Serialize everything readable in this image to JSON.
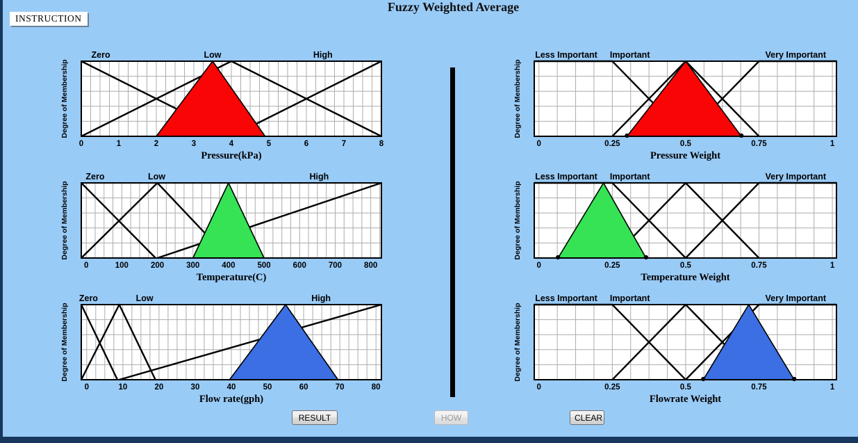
{
  "window": {
    "title": "Fuzzy Weighted Average",
    "instruction_label": "INSTRUCTION"
  },
  "buttons": {
    "result": "RESULT",
    "how": "HOW",
    "clear": "CLEAR"
  },
  "colors": {
    "background": "#99CBF7",
    "frame": "#17375E",
    "grid": "#ACACAC",
    "mf_line": "#000000",
    "red": "#FA0505",
    "green": "#35E354",
    "blue": "#3B6FE3"
  },
  "chart_data": [
    {
      "id": "pressure",
      "type": "line",
      "side": "left",
      "row": 0,
      "xlabel": "Pressure(kPa)",
      "ylabel": "Degree of Membership",
      "xlim": [
        0,
        8
      ],
      "ylim": [
        0,
        1
      ],
      "grid_step_x": 0.25,
      "grid_y": [
        0.2,
        0.4,
        0.6,
        0.8
      ],
      "xticks": {
        "values": [
          0,
          1,
          2,
          3,
          4,
          5,
          6,
          7,
          8
        ],
        "labels": [
          "0",
          "1",
          "2",
          "3",
          "4",
          "5",
          "6",
          "7",
          "8"
        ]
      },
      "mf_labels": [
        {
          "text": "Zero",
          "x": 0.52
        },
        {
          "text": "Low",
          "x": 3.5
        },
        {
          "text": "High",
          "x": 6.44
        }
      ],
      "membership_functions": [
        {
          "name": "Zero",
          "points": [
            [
              0,
              1
            ],
            [
              4,
              0
            ]
          ]
        },
        {
          "name": "Low",
          "points": [
            [
              0,
              0
            ],
            [
              4,
              1
            ],
            [
              8,
              0
            ]
          ]
        },
        {
          "name": "High",
          "points": [
            [
              4,
              0
            ],
            [
              8,
              1
            ]
          ]
        }
      ],
      "fuzzy_number": {
        "name": "pressure input",
        "color_key": "red",
        "points": [
          [
            2,
            0
          ],
          [
            3.5,
            1
          ],
          [
            4.9,
            0
          ]
        ],
        "corner_dots": false
      }
    },
    {
      "id": "temperature",
      "type": "line",
      "side": "left",
      "row": 1,
      "xlabel": "Temperature(C)",
      "ylabel": "Degree of Membership",
      "xlim": [
        -14,
        830
      ],
      "ylim": [
        0,
        1
      ],
      "grid_step_x": 25,
      "grid_y": [
        0.2,
        0.4,
        0.6,
        0.8
      ],
      "xticks": {
        "values": [
          0,
          100,
          200,
          300,
          400,
          500,
          600,
          700,
          800
        ],
        "labels": [
          "0",
          "100",
          "200",
          "300",
          "400",
          "500",
          "600",
          "700",
          "800"
        ]
      },
      "mf_labels": [
        {
          "text": "Zero",
          "x": 25
        },
        {
          "text": "Low",
          "x": 198
        },
        {
          "text": "High",
          "x": 655
        }
      ],
      "membership_functions": [
        {
          "name": "Zero",
          "points": [
            [
              -14,
              1
            ],
            [
              195,
              0
            ]
          ]
        },
        {
          "name": "Low",
          "points": [
            [
              -14,
              0
            ],
            [
              200,
              1
            ],
            [
              400,
              0
            ]
          ]
        },
        {
          "name": "High",
          "points": [
            [
              200,
              0
            ],
            [
              830,
              1
            ]
          ]
        }
      ],
      "fuzzy_number": {
        "name": "temperature input",
        "color_key": "green",
        "points": [
          [
            300,
            0
          ],
          [
            400,
            1
          ],
          [
            500,
            0
          ]
        ],
        "corner_dots": false
      }
    },
    {
      "id": "flowrate",
      "type": "line",
      "side": "left",
      "row": 2,
      "xlabel": "Flow rate(gph)",
      "ylabel": "Degree of Membership",
      "xlim": [
        -1.5,
        81.5
      ],
      "ylim": [
        0,
        1
      ],
      "grid_step_x": 2.5,
      "grid_y": [
        0.2,
        0.4,
        0.6,
        0.8
      ],
      "xticks": {
        "values": [
          0,
          10,
          20,
          30,
          40,
          50,
          60,
          70,
          80
        ],
        "labels": [
          "0",
          "10",
          "20",
          "30",
          "40",
          "50",
          "60",
          "70",
          "80"
        ]
      },
      "mf_labels": [
        {
          "text": "Zero",
          "x": 0.5
        },
        {
          "text": "Low",
          "x": 16
        },
        {
          "text": "High",
          "x": 64.8
        }
      ],
      "membership_functions": [
        {
          "name": "Zero",
          "points": [
            [
              -1.5,
              1
            ],
            [
              8.5,
              0
            ]
          ]
        },
        {
          "name": "Low",
          "points": [
            [
              -1.5,
              0
            ],
            [
              9,
              1
            ],
            [
              19,
              0
            ]
          ]
        },
        {
          "name": "High",
          "points": [
            [
              9,
              0
            ],
            [
              81.5,
              1
            ]
          ]
        }
      ],
      "fuzzy_number": {
        "name": "flow rate input",
        "color_key": "blue",
        "points": [
          [
            39.5,
            0
          ],
          [
            55,
            1
          ],
          [
            69.5,
            0
          ]
        ],
        "corner_dots": false
      }
    },
    {
      "id": "pressure_weight",
      "type": "line",
      "side": "right",
      "row": 0,
      "xlabel": "Pressure Weight",
      "ylabel": "Degree of Membership",
      "xlim": [
        -0.016,
        1.014
      ],
      "ylim": [
        0,
        1
      ],
      "grid_step_x": 0.0625,
      "grid_y": [
        0.2,
        0.4,
        0.6,
        0.8
      ],
      "xticks": {
        "values": [
          0,
          0.25,
          0.5,
          0.75,
          1
        ],
        "labels": [
          "0",
          "0.25",
          "0.5",
          "0.75",
          "1"
        ]
      },
      "mf_labels": [
        {
          "text": "Less Important",
          "x": 0.093
        },
        {
          "text": "Important",
          "x": 0.31
        },
        {
          "text": "Very Important",
          "x": 0.875
        }
      ],
      "membership_functions": [
        {
          "name": "Less Important",
          "points": [
            [
              -0.016,
              1
            ],
            [
              0.25,
              1
            ],
            [
              0.5,
              0
            ]
          ]
        },
        {
          "name": "Important",
          "points": [
            [
              0.25,
              0
            ],
            [
              0.5,
              1
            ],
            [
              0.75,
              0
            ]
          ]
        },
        {
          "name": "Very Important",
          "points": [
            [
              0.5,
              0
            ],
            [
              0.75,
              1
            ],
            [
              1.014,
              1
            ]
          ]
        }
      ],
      "fuzzy_number": {
        "name": "pressure weight",
        "color_key": "red",
        "points": [
          [
            0.3,
            0
          ],
          [
            0.5,
            1
          ],
          [
            0.69,
            0
          ]
        ],
        "corner_dots": true
      }
    },
    {
      "id": "temperature_weight",
      "type": "line",
      "side": "right",
      "row": 1,
      "xlabel": "Temperature Weight",
      "ylabel": "Degree of Membership",
      "xlim": [
        -0.016,
        1.014
      ],
      "ylim": [
        0,
        1
      ],
      "grid_step_x": 0.0625,
      "grid_y": [
        0.2,
        0.4,
        0.6,
        0.8
      ],
      "xticks": {
        "values": [
          0,
          0.25,
          0.5,
          0.75,
          1
        ],
        "labels": [
          "0",
          "0.25",
          "0.5",
          "0.75",
          "1"
        ]
      },
      "mf_labels": [
        {
          "text": "Less Important",
          "x": 0.093
        },
        {
          "text": "Important",
          "x": 0.31
        },
        {
          "text": "Very Important",
          "x": 0.875
        }
      ],
      "membership_functions": [
        {
          "name": "Less Important",
          "points": [
            [
              -0.016,
              1
            ],
            [
              0.25,
              1
            ],
            [
              0.5,
              0
            ]
          ]
        },
        {
          "name": "Important",
          "points": [
            [
              0.25,
              0
            ],
            [
              0.5,
              1
            ],
            [
              0.75,
              0
            ]
          ]
        },
        {
          "name": "Very Important",
          "points": [
            [
              0.5,
              0
            ],
            [
              0.75,
              1
            ],
            [
              1.014,
              1
            ]
          ]
        }
      ],
      "fuzzy_number": {
        "name": "temperature weight",
        "color_key": "green",
        "points": [
          [
            0.065,
            0
          ],
          [
            0.22,
            1
          ],
          [
            0.365,
            0
          ]
        ],
        "corner_dots": true
      }
    },
    {
      "id": "flowrate_weight",
      "type": "line",
      "side": "right",
      "row": 2,
      "xlabel": "Flowrate Weight",
      "ylabel": "Degree of Membership",
      "xlim": [
        -0.016,
        1.014
      ],
      "ylim": [
        0,
        1
      ],
      "grid_step_x": 0.0625,
      "grid_y": [
        0.2,
        0.4,
        0.6,
        0.8
      ],
      "xticks": {
        "values": [
          0,
          0.25,
          0.5,
          0.75,
          1
        ],
        "labels": [
          "0",
          "0.25",
          "0.5",
          "0.75",
          "1"
        ]
      },
      "mf_labels": [
        {
          "text": "Less Important",
          "x": 0.093
        },
        {
          "text": "Important",
          "x": 0.31
        },
        {
          "text": "Very Important",
          "x": 0.875
        }
      ],
      "membership_functions": [
        {
          "name": "Less Important",
          "points": [
            [
              -0.016,
              1
            ],
            [
              0.25,
              1
            ],
            [
              0.5,
              0
            ]
          ]
        },
        {
          "name": "Important",
          "points": [
            [
              0.25,
              0
            ],
            [
              0.5,
              1
            ],
            [
              0.75,
              0
            ]
          ]
        },
        {
          "name": "Very Important",
          "points": [
            [
              0.5,
              0
            ],
            [
              0.75,
              1
            ],
            [
              1.014,
              1
            ]
          ]
        }
      ],
      "fuzzy_number": {
        "name": "flowrate weight",
        "color_key": "blue",
        "points": [
          [
            0.56,
            0
          ],
          [
            0.715,
            1
          ],
          [
            0.87,
            0
          ]
        ],
        "corner_dots": true
      }
    }
  ]
}
